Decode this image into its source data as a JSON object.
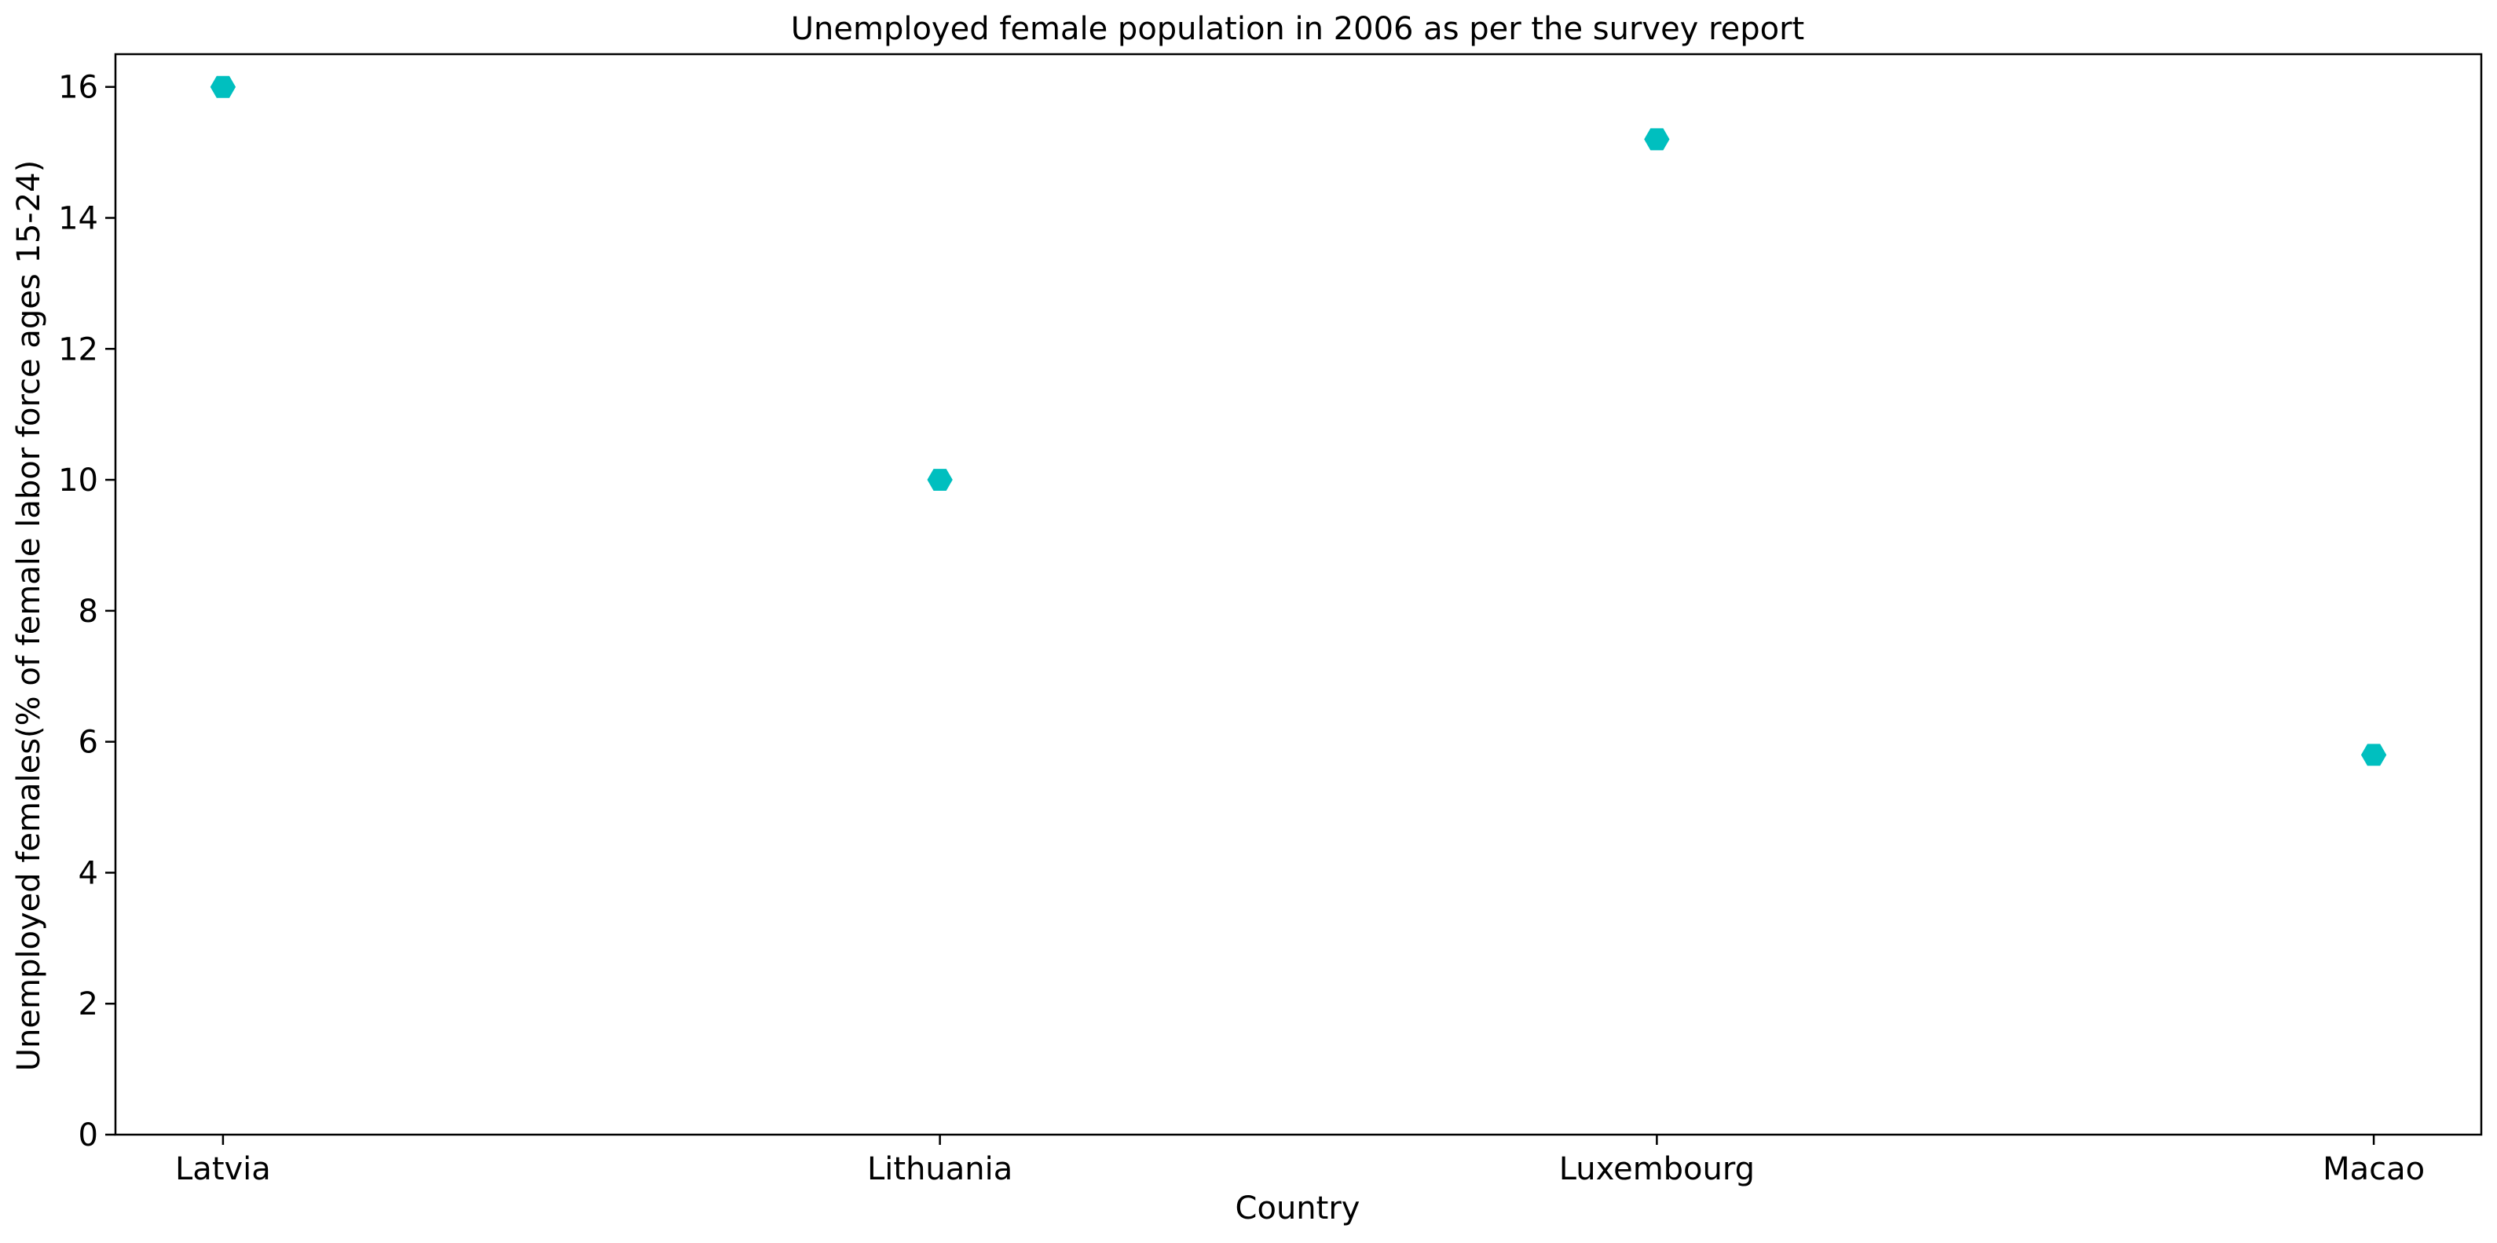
{
  "chart_data": {
    "type": "scatter",
    "title": "Unemployed female population in 2006 as per the survey report",
    "xlabel": "Country",
    "ylabel": "Unemployed females(% of female labor force ages 15-24)",
    "categories": [
      "Latvia",
      "Lithuania",
      "Luxembourg",
      "Macao"
    ],
    "values": [
      16.0,
      10.0,
      15.2,
      5.8
    ],
    "ylim": [
      0,
      16.5
    ],
    "yticks": [
      0,
      2,
      4,
      6,
      8,
      10,
      12,
      14,
      16
    ],
    "grid": false,
    "marker_color": "#00bfbf",
    "marker_shape": "hexagon"
  }
}
